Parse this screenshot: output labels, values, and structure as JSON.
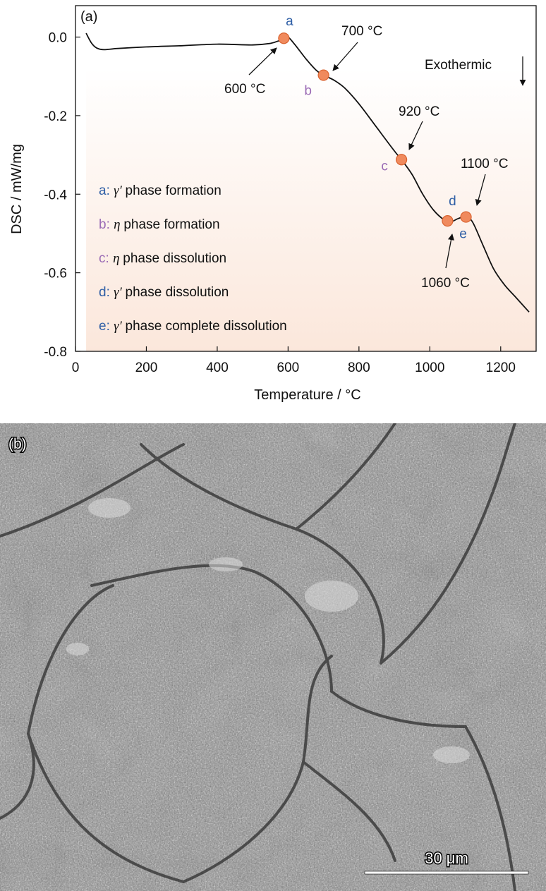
{
  "panel_a_label": "(a)",
  "panel_b_label": "(b)",
  "exothermic_label": "Exothermic",
  "scale_bar_label": "30 μm",
  "colors": {
    "marker": "#f08a5d",
    "marker_edge": "#d9622f",
    "blue_letter": "#2f5fa6",
    "purple_letter": "#9b6bb5",
    "plot_fill_bottom": "#fbe7db",
    "curve": "#111111"
  },
  "chart_data": {
    "type": "line",
    "xlabel": "Temperature / °C",
    "ylabel": "DSC / mW/mg",
    "xlim": [
      0,
      1300
    ],
    "ylim": [
      -0.8,
      0.08
    ],
    "xticks": [
      0,
      200,
      400,
      600,
      800,
      1000,
      1200
    ],
    "yticks": [
      0.0,
      -0.2,
      -0.4,
      -0.6,
      -0.8
    ],
    "xtick_labels": [
      "0",
      "200",
      "400",
      "600",
      "800",
      "1000",
      "1200"
    ],
    "ytick_labels": [
      "0.0",
      "-0.2",
      "-0.4",
      "-0.6",
      "-0.8"
    ],
    "grid": false,
    "series": [
      {
        "points": [
          [
            30,
            0.01
          ],
          [
            45,
            -0.015
          ],
          [
            60,
            -0.028
          ],
          [
            80,
            -0.032
          ],
          [
            120,
            -0.029
          ],
          [
            200,
            -0.025
          ],
          [
            300,
            -0.022
          ],
          [
            400,
            -0.018
          ],
          [
            500,
            -0.02
          ],
          [
            550,
            -0.016
          ],
          [
            575,
            -0.009
          ],
          [
            590,
            -0.003
          ],
          [
            600,
            0.0
          ],
          [
            620,
            -0.02
          ],
          [
            650,
            -0.055
          ],
          [
            680,
            -0.085
          ],
          [
            700,
            -0.097
          ],
          [
            730,
            -0.11
          ],
          [
            760,
            -0.13
          ],
          [
            800,
            -0.17
          ],
          [
            850,
            -0.23
          ],
          [
            900,
            -0.29
          ],
          [
            920,
            -0.312
          ],
          [
            950,
            -0.35
          ],
          [
            980,
            -0.4
          ],
          [
            1010,
            -0.44
          ],
          [
            1040,
            -0.465
          ],
          [
            1060,
            -0.47
          ],
          [
            1080,
            -0.462
          ],
          [
            1100,
            -0.458
          ],
          [
            1120,
            -0.47
          ],
          [
            1150,
            -0.53
          ],
          [
            1180,
            -0.59
          ],
          [
            1210,
            -0.63
          ],
          [
            1240,
            -0.66
          ],
          [
            1280,
            -0.7
          ]
        ]
      }
    ],
    "markers": [
      {
        "letter": "a",
        "x": 588,
        "y": -0.003
      },
      {
        "letter": "b",
        "x": 700,
        "y": -0.097
      },
      {
        "letter": "c",
        "x": 920,
        "y": -0.312
      },
      {
        "letter": "d",
        "x": 1050,
        "y": -0.468
      },
      {
        "letter": "e",
        "x": 1102,
        "y": -0.458
      }
    ],
    "annotations": [
      {
        "text": "600 °C",
        "x": 588,
        "y": -0.003
      },
      {
        "text": "700 °C",
        "x": 700,
        "y": -0.097
      },
      {
        "text": "920 °C",
        "x": 920,
        "y": -0.312
      },
      {
        "text": "1060 °C",
        "x": 1050,
        "y": -0.468
      },
      {
        "text": "1100 °C",
        "x": 1102,
        "y": -0.458
      }
    ],
    "legend": [
      {
        "letter": "a",
        "colon": ":",
        "symbol": "γ′",
        "text": "phase formation"
      },
      {
        "letter": "b",
        "colon": ":",
        "symbol": "η",
        "text": "phase formation"
      },
      {
        "letter": "c",
        "colon": ":",
        "symbol": "η",
        "text": "phase dissolution"
      },
      {
        "letter": "d",
        "colon": ":",
        "symbol": "γ′",
        "text": "phase dissolution"
      },
      {
        "letter": "e",
        "colon": ":",
        "symbol": "γ′",
        "text": "phase complete dissolution"
      }
    ]
  }
}
